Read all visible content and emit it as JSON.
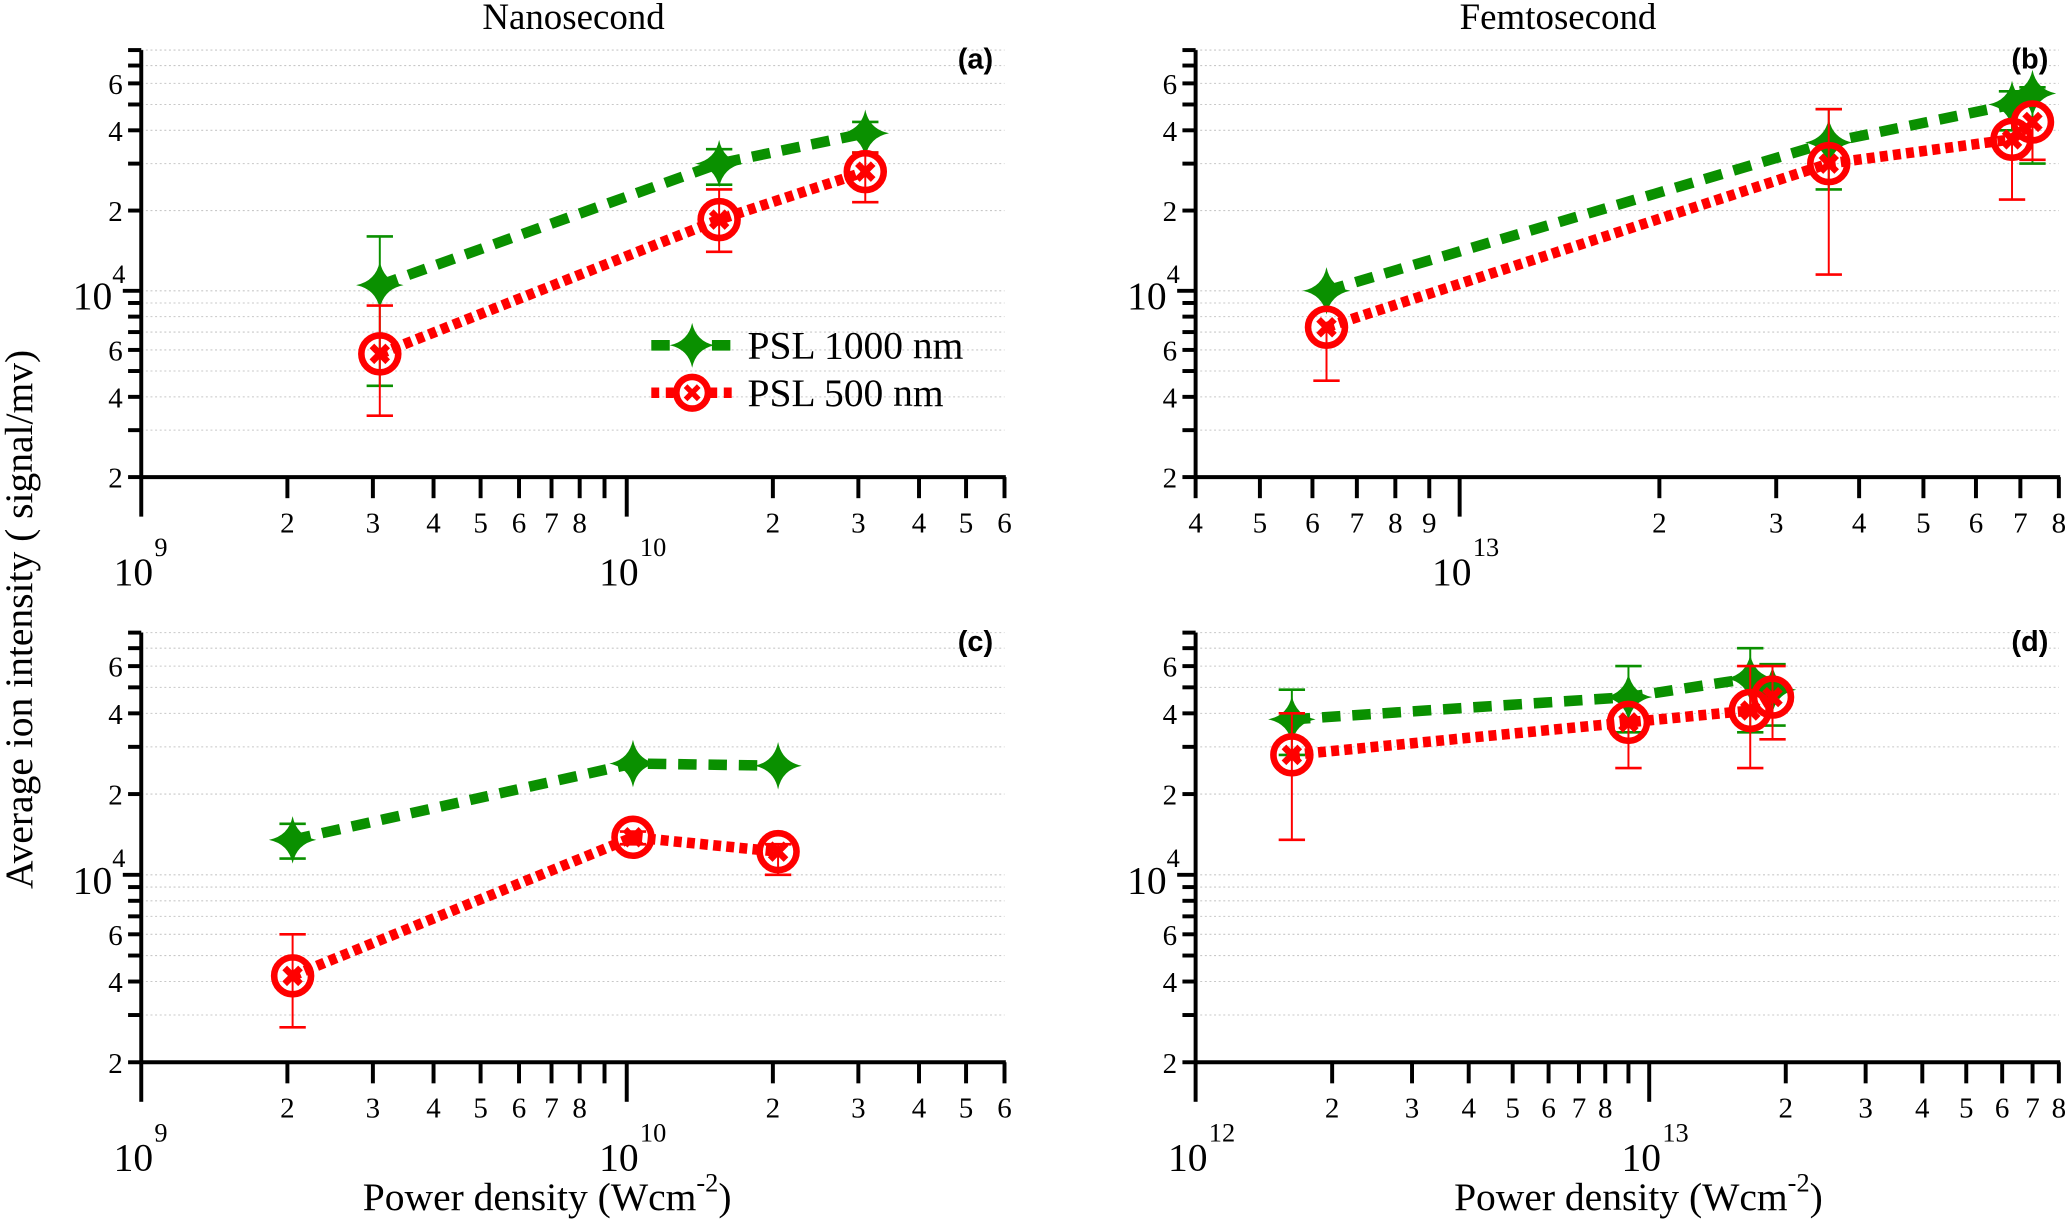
{
  "figure": {
    "ylabel": "Average ion intensity ( signal/mv)",
    "xlabel_main": "Power  density (Wcm",
    "xlabel_sup": "-2",
    "xlabel_close": ")",
    "column_titles": [
      "Nanosecond",
      "Femtosecond"
    ],
    "legend": [
      {
        "name": "PSL 1000 nm",
        "color": "#0a9000",
        "line": "dashed",
        "marker": "four-point-star"
      },
      {
        "name": "PSL 500 nm",
        "color": "#ff0000",
        "line": "dotted",
        "marker": "circle-x"
      }
    ],
    "colors": {
      "green": "#0a9000",
      "red": "#ff0000",
      "grid": "#c8c8c8",
      "axis": "#000000"
    }
  },
  "chart_data": [
    {
      "type": "line",
      "panel": "(a)",
      "title": "Nanosecond",
      "xscale": "log",
      "yscale": "log",
      "xlim": [
        1000000000.0,
        60000000000.0
      ],
      "ylim": [
        2000,
        80000
      ],
      "xticks_major": [
        {
          "value": 1000000000.0,
          "base": "10",
          "exp": "9"
        },
        {
          "value": 10000000000.0,
          "base": "10",
          "exp": "10"
        }
      ],
      "xticks_minor_labels": [
        [
          2000000000.0,
          "2"
        ],
        [
          3000000000.0,
          "3"
        ],
        [
          4000000000.0,
          "4"
        ],
        [
          5000000000.0,
          "5"
        ],
        [
          6000000000.0,
          "6"
        ],
        [
          7000000000.0,
          "7"
        ],
        [
          8000000000.0,
          "8"
        ],
        [
          9000000000.0,
          ""
        ],
        [
          20000000000.0,
          "2"
        ],
        [
          30000000000.0,
          "3"
        ],
        [
          40000000000.0,
          "4"
        ],
        [
          50000000000.0,
          "5"
        ],
        [
          60000000000.0,
          "6"
        ]
      ],
      "grid": true,
      "show_legend": true,
      "legend_position": "center-right",
      "series": [
        {
          "name": "PSL 1000 nm",
          "x": [
            3100000000.0,
            15500000000.0,
            31000000000.0
          ],
          "y": [
            10500,
            30000,
            39000
          ],
          "err_low": [
            4400,
            25000,
            33000
          ],
          "err_high": [
            16000,
            34000,
            43000
          ]
        },
        {
          "name": "PSL 500 nm",
          "x": [
            3100000000.0,
            15500000000.0,
            31000000000.0
          ],
          "y": [
            5800,
            18500,
            28000
          ],
          "err_low": [
            3400,
            14000,
            21500
          ],
          "err_high": [
            8800,
            24000,
            33000
          ]
        }
      ]
    },
    {
      "type": "line",
      "panel": "(b)",
      "title": "Femtosecond",
      "xscale": "log",
      "yscale": "log",
      "xlim": [
        4000000000000.0,
        80000000000000.0
      ],
      "ylim": [
        2000,
        80000
      ],
      "xticks_major": [
        {
          "value": 10000000000000.0,
          "base": "10",
          "exp": "13"
        }
      ],
      "xticks_minor_labels": [
        [
          4000000000000.0,
          "4"
        ],
        [
          5000000000000.0,
          "5"
        ],
        [
          6000000000000.0,
          "6"
        ],
        [
          7000000000000.0,
          "7"
        ],
        [
          8000000000000.0,
          "8"
        ],
        [
          9000000000000.0,
          "9"
        ],
        [
          20000000000000.0,
          "2"
        ],
        [
          30000000000000.0,
          "3"
        ],
        [
          40000000000000.0,
          "4"
        ],
        [
          50000000000000.0,
          "5"
        ],
        [
          60000000000000.0,
          "6"
        ],
        [
          70000000000000.0,
          "7"
        ],
        [
          80000000000000.0,
          "8"
        ]
      ],
      "grid": true,
      "show_legend": false,
      "series": [
        {
          "name": "PSL 1000 nm",
          "x": [
            6300000000000.0,
            36000000000000.0,
            68000000000000.0,
            73000000000000.0
          ],
          "y": [
            10000,
            36000,
            50000,
            55000
          ],
          "err_low": [
            10000,
            24000,
            40000,
            30000
          ],
          "err_high": [
            10000,
            48000,
            56000,
            58000
          ]
        },
        {
          "name": "PSL 500 nm",
          "x": [
            6300000000000.0,
            36000000000000.0,
            68000000000000.0,
            73000000000000.0
          ],
          "y": [
            7300,
            30000,
            37000,
            43000
          ],
          "err_low": [
            4600,
            11500,
            22000,
            31000
          ],
          "err_high": [
            7300,
            48000,
            37000,
            43000
          ]
        }
      ]
    },
    {
      "type": "line",
      "panel": "(c)",
      "title": "",
      "xscale": "log",
      "yscale": "log",
      "xlim": [
        1000000000.0,
        60000000000.0
      ],
      "ylim": [
        2000,
        80000
      ],
      "xticks_major": [
        {
          "value": 1000000000.0,
          "base": "10",
          "exp": "9"
        },
        {
          "value": 10000000000.0,
          "base": "10",
          "exp": "10"
        }
      ],
      "xticks_minor_labels": [
        [
          2000000000.0,
          "2"
        ],
        [
          3000000000.0,
          "3"
        ],
        [
          4000000000.0,
          "4"
        ],
        [
          5000000000.0,
          "5"
        ],
        [
          6000000000.0,
          "6"
        ],
        [
          7000000000.0,
          "7"
        ],
        [
          8000000000.0,
          "8"
        ],
        [
          9000000000.0,
          ""
        ],
        [
          20000000000.0,
          "2"
        ],
        [
          30000000000.0,
          "3"
        ],
        [
          40000000000.0,
          "4"
        ],
        [
          50000000000.0,
          "5"
        ],
        [
          60000000000.0,
          "6"
        ]
      ],
      "grid": true,
      "show_legend": false,
      "series": [
        {
          "name": "PSL 1000 nm",
          "x": [
            2050000000.0,
            10300000000.0,
            20500000000.0
          ],
          "y": [
            13500,
            26000,
            25500
          ],
          "err_low": [
            11500,
            26000,
            25500
          ],
          "err_high": [
            15500,
            26000,
            25500
          ]
        },
        {
          "name": "PSL 500 nm",
          "x": [
            2050000000.0,
            10300000000.0,
            20500000000.0
          ],
          "y": [
            4200,
            13800,
            12200
          ],
          "err_low": [
            2700,
            13000,
            10000
          ],
          "err_high": [
            6000,
            14500,
            13000
          ]
        }
      ]
    },
    {
      "type": "line",
      "panel": "(d)",
      "title": "",
      "xscale": "log",
      "yscale": "log",
      "xlim": [
        1000000000000.0,
        80000000000000.0
      ],
      "ylim": [
        2000,
        80000
      ],
      "xticks_major": [
        {
          "value": 1000000000000.0,
          "base": "10",
          "exp": "12"
        },
        {
          "value": 10000000000000.0,
          "base": "10",
          "exp": "13"
        }
      ],
      "xticks_minor_labels": [
        [
          2000000000000.0,
          "2"
        ],
        [
          3000000000000.0,
          "3"
        ],
        [
          4000000000000.0,
          "4"
        ],
        [
          5000000000000.0,
          "5"
        ],
        [
          6000000000000.0,
          "6"
        ],
        [
          7000000000000.0,
          "7"
        ],
        [
          8000000000000.0,
          "8"
        ],
        [
          9000000000000.0,
          ""
        ],
        [
          20000000000000.0,
          "2"
        ],
        [
          30000000000000.0,
          "3"
        ],
        [
          40000000000000.0,
          "4"
        ],
        [
          50000000000000.0,
          "5"
        ],
        [
          60000000000000.0,
          "6"
        ],
        [
          70000000000000.0,
          "7"
        ],
        [
          80000000000000.0,
          "8"
        ]
      ],
      "grid": true,
      "show_legend": false,
      "series": [
        {
          "name": "PSL 1000 nm",
          "x": [
            1630000000000.0,
            9000000000000.0,
            16700000000000.0,
            18700000000000.0
          ],
          "y": [
            38000,
            46000,
            54000,
            49000
          ],
          "err_low": [
            28000,
            34000,
            34000,
            36000
          ],
          "err_high": [
            49000,
            60000,
            70000,
            61000
          ]
        },
        {
          "name": "PSL 500 nm",
          "x": [
            1630000000000.0,
            9000000000000.0,
            16700000000000.0,
            18700000000000.0
          ],
          "y": [
            28000,
            37000,
            41000,
            46000
          ],
          "err_low": [
            13500,
            25000,
            25000,
            32000
          ],
          "err_high": [
            40000,
            37000,
            60000,
            60000
          ]
        }
      ]
    }
  ],
  "yaxis": {
    "ticks": [
      2000,
      3000,
      4000,
      5000,
      6000,
      7000,
      8000,
      9000,
      10000,
      20000,
      30000,
      40000,
      50000,
      60000,
      70000,
      80000
    ],
    "labels": [
      [
        2000,
        "2"
      ],
      [
        4000,
        "4"
      ],
      [
        6000,
        "6"
      ],
      [
        20000,
        "2"
      ],
      [
        40000,
        "4"
      ],
      [
        60000,
        "6"
      ]
    ],
    "major": {
      "value": 10000,
      "base": "10",
      "exp": "4"
    }
  }
}
